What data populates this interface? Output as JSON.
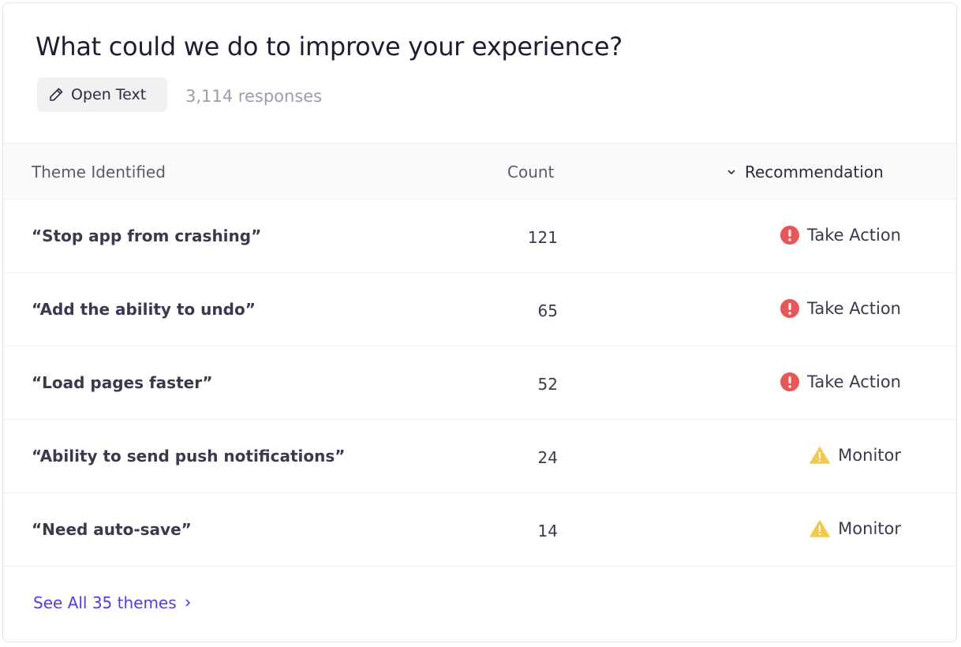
{
  "header": {
    "title": "What could we do to improve your experience?",
    "question_type": "Open Text",
    "responses": "3,114 responses"
  },
  "table": {
    "columns": {
      "theme": "Theme Identified",
      "count": "Count",
      "recommendation": "Recommendation"
    },
    "rows": [
      {
        "theme": "“Stop app from crashing”",
        "count": "121",
        "recommendation": "Take Action",
        "icon": "error-icon"
      },
      {
        "theme": "“Add the ability to undo”",
        "count": "65",
        "recommendation": "Take Action",
        "icon": "error-icon"
      },
      {
        "theme": "“Load pages faster”",
        "count": "52",
        "recommendation": "Take Action",
        "icon": "error-icon"
      },
      {
        "theme": "“Ability to send push notifications”",
        "count": "24",
        "recommendation": "Monitor",
        "icon": "warning-icon"
      },
      {
        "theme": "“Need auto-save”",
        "count": "14",
        "recommendation": "Monitor",
        "icon": "warning-icon"
      }
    ]
  },
  "footer": {
    "see_all": "See All 35 themes"
  },
  "colors": {
    "accent": "#4f3fe0",
    "error": "#e85757",
    "warning": "#f2c94c"
  }
}
